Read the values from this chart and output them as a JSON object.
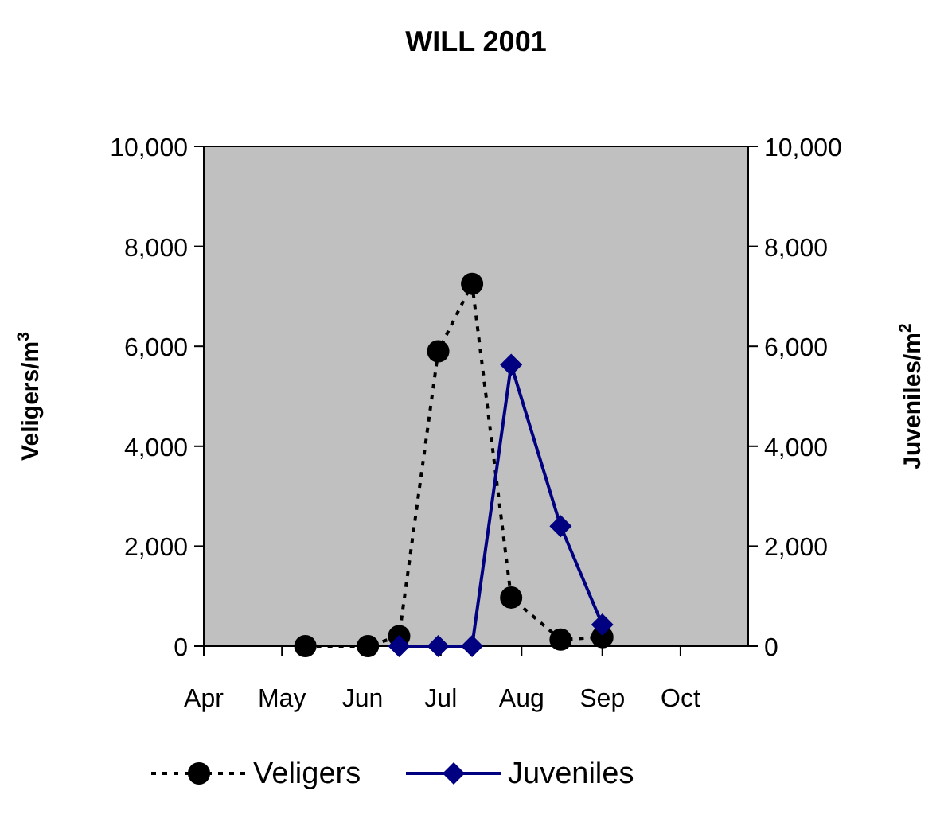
{
  "chart_data": {
    "type": "line",
    "title": "WILL 2001",
    "ylabel": "Veligers/m$^{3}$",
    "y2label": "Juveniles/m$^{2}$",
    "xlim": [
      "2001-04-01",
      "2001-10-27"
    ],
    "xticks": [
      {
        "value": "2001-04-01",
        "label": "Apr"
      },
      {
        "value": "2001-05-01",
        "label": "May"
      },
      {
        "value": "2001-06-01",
        "label": "Jun"
      },
      {
        "value": "2001-07-01",
        "label": "Jul"
      },
      {
        "value": "2001-08-01",
        "label": "Aug"
      },
      {
        "value": "2001-09-01",
        "label": "Sep"
      },
      {
        "value": "2001-10-01",
        "label": "Oct"
      }
    ],
    "ylim": [
      0,
      10000
    ],
    "yticks": [
      {
        "value": 0,
        "label": "0"
      },
      {
        "value": 2000,
        "label": "2,000"
      },
      {
        "value": 4000,
        "label": "4,000"
      },
      {
        "value": 6000,
        "label": "6,000"
      },
      {
        "value": 8000,
        "label": "8,000"
      },
      {
        "value": 10000,
        "label": "10,000"
      }
    ],
    "y2lim": [
      0,
      10000
    ],
    "y2ticks": [
      {
        "value": 0,
        "label": "0"
      },
      {
        "value": 2000,
        "label": "2,000"
      },
      {
        "value": 4000,
        "label": "4,000"
      },
      {
        "value": 6000,
        "label": "6,000"
      },
      {
        "value": 8000,
        "label": "8,000"
      },
      {
        "value": 10000,
        "label": "10,000"
      }
    ],
    "legend": "bottom",
    "grid": false,
    "series": [
      {
        "name": "Veligers",
        "color": "#000000",
        "marker": "circle",
        "line_style": "dotted",
        "x": [
          "2001-05-10",
          "2001-06-03",
          "2001-06-15",
          "2001-06-30",
          "2001-07-13",
          "2001-07-28",
          "2001-08-16",
          "2001-09-01"
        ],
        "values": [
          0,
          0,
          200,
          5900,
          7250,
          970,
          130,
          180
        ]
      },
      {
        "name": "Juveniles",
        "color": "#000080",
        "marker": "diamond",
        "line_style": "solid",
        "axis": "y2",
        "x": [
          "2001-06-15",
          "2001-06-30",
          "2001-07-13",
          "2001-07-28",
          "2001-08-16",
          "2001-09-01"
        ],
        "values": [
          0,
          0,
          0,
          5630,
          2400,
          430
        ]
      }
    ]
  }
}
